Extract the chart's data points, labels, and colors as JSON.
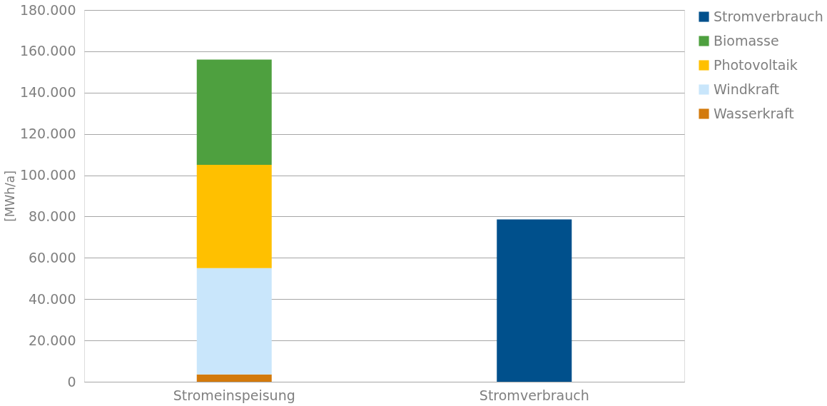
{
  "chart_data": {
    "type": "bar",
    "stacked": true,
    "ylabel": "[MWh/a]",
    "categories": [
      "Stromeinspeisung",
      "Stromverbrauch"
    ],
    "series": [
      {
        "name": "Wasserkraft",
        "color": "#d37a0c",
        "values": [
          3500,
          null
        ]
      },
      {
        "name": "Windkraft",
        "color": "#c9e6fb",
        "values": [
          51500,
          null
        ]
      },
      {
        "name": "Photovoltaik",
        "color": "#ffc000",
        "values": [
          50000,
          null
        ]
      },
      {
        "name": "Biomasse",
        "color": "#4ea03f",
        "values": [
          51000,
          null
        ]
      },
      {
        "name": "Stromverbrauch",
        "color": "#00508c",
        "values": [
          null,
          78600
        ]
      }
    ],
    "ylim": [
      0,
      180000
    ],
    "yticks": [
      {
        "value": 0,
        "label": "0"
      },
      {
        "value": 20000,
        "label": "20.000"
      },
      {
        "value": 40000,
        "label": "40.000"
      },
      {
        "value": 60000,
        "label": "60.000"
      },
      {
        "value": 80000,
        "label": "80.000"
      },
      {
        "value": 100000,
        "label": "100.000"
      },
      {
        "value": 120000,
        "label": "120.000"
      },
      {
        "value": 140000,
        "label": "140.000"
      },
      {
        "value": 160000,
        "label": "160.000"
      },
      {
        "value": 180000,
        "label": "180.000"
      }
    ],
    "grid": "y",
    "legend": "right"
  }
}
